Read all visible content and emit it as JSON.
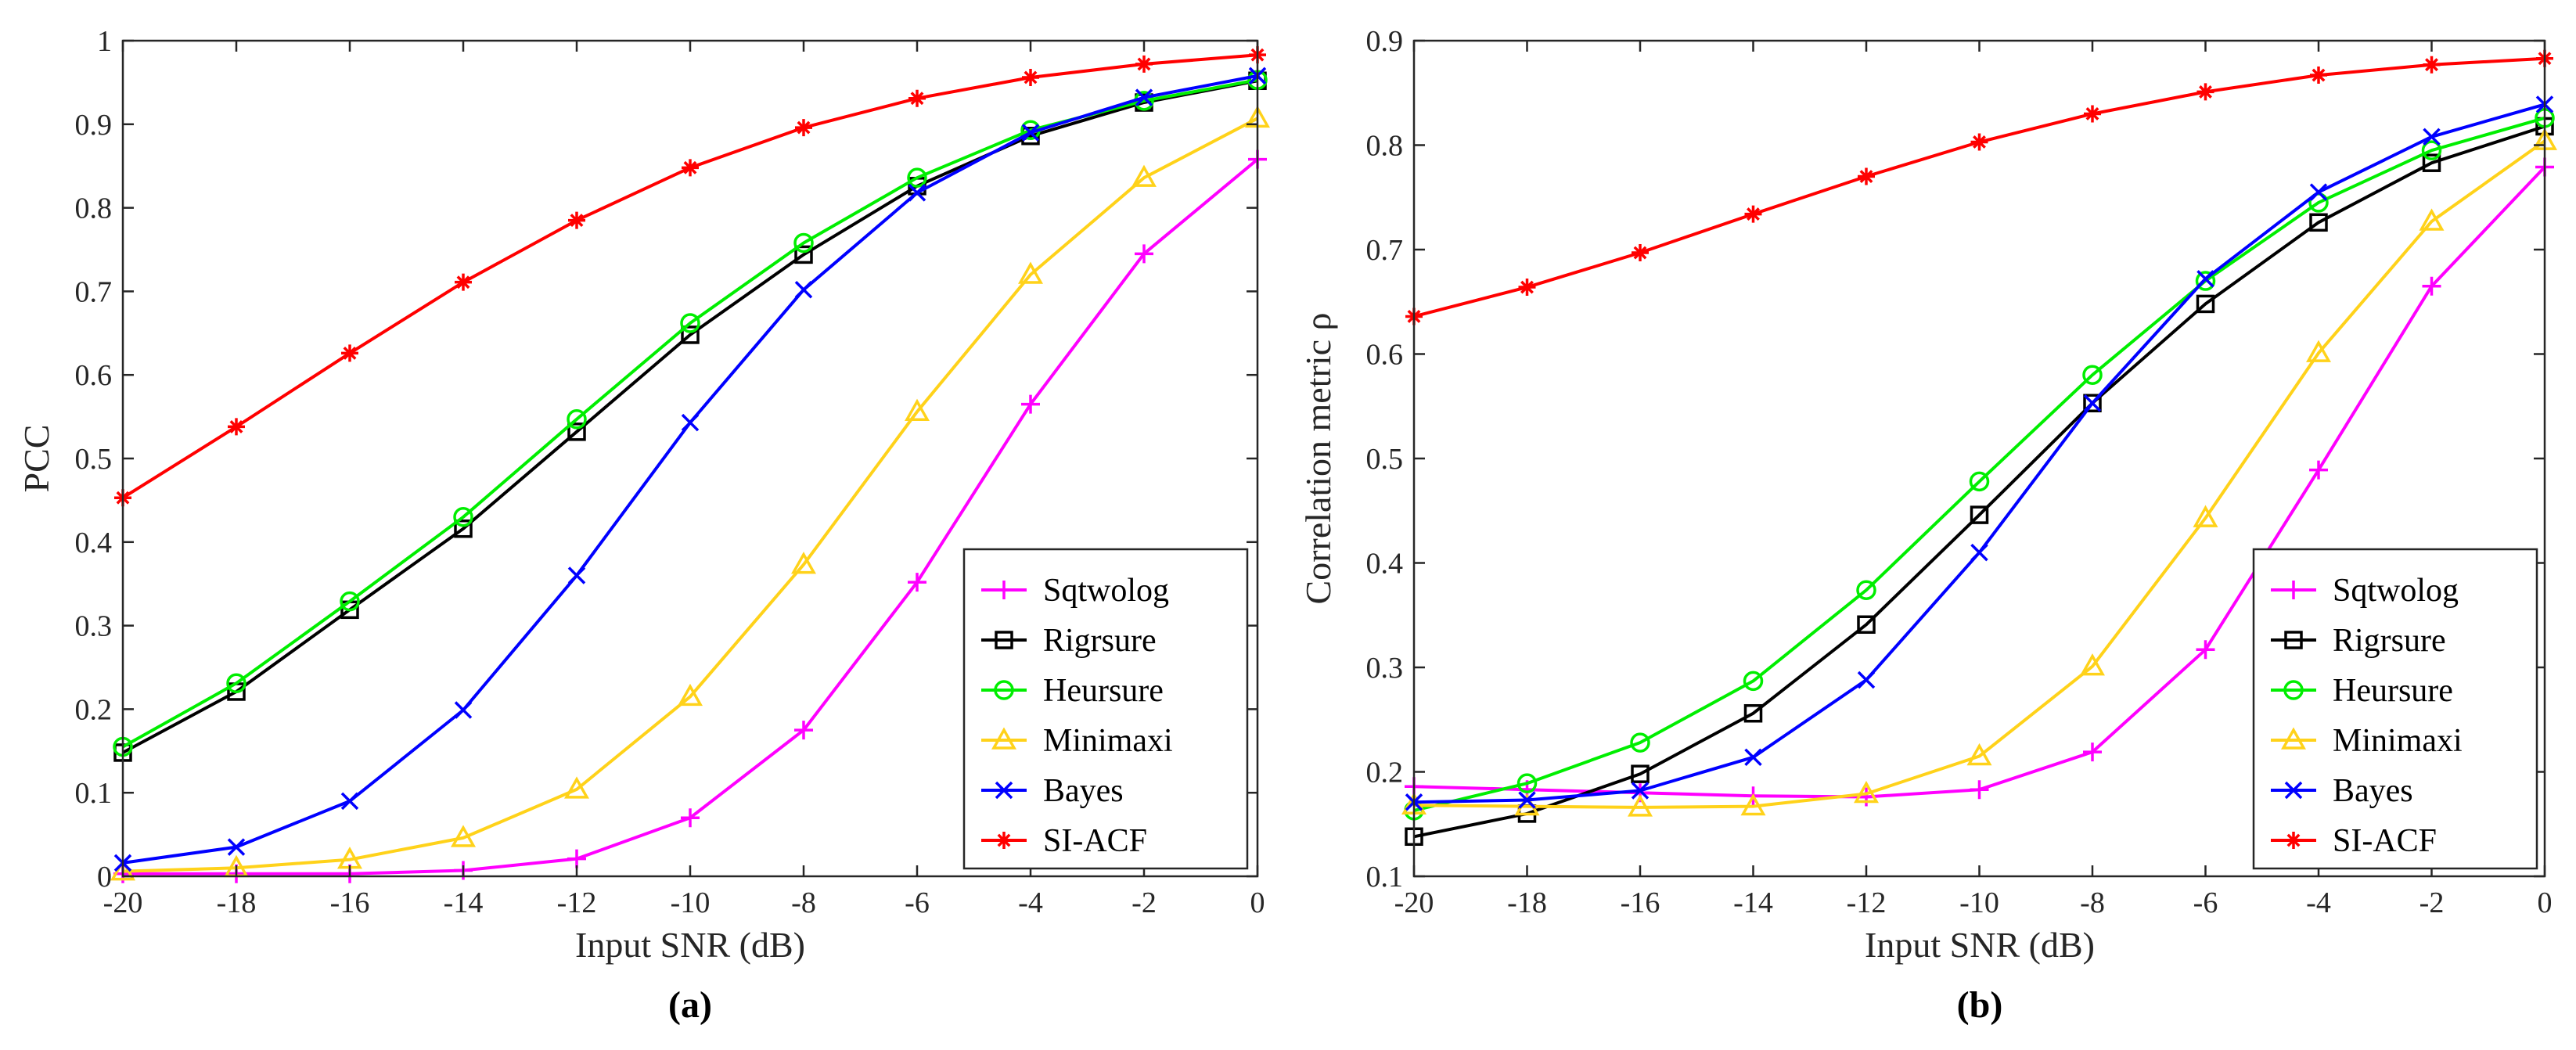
{
  "chart_data": [
    {
      "type": "line",
      "caption": "(a)",
      "xlabel": "Input SNR (dB)",
      "ylabel": "PCC",
      "xlim": [
        -20,
        0
      ],
      "ylim": [
        0,
        1
      ],
      "xticks": [
        -20,
        -18,
        -16,
        -14,
        -12,
        -10,
        -8,
        -6,
        -4,
        -2,
        0
      ],
      "xtick_labels": [
        "-20",
        "-18",
        "-16",
        "-14",
        "-12",
        "-10",
        "-8",
        "-6",
        "-4",
        "-2",
        "0"
      ],
      "yticks": [
        0,
        0.1,
        0.2,
        0.3,
        0.4,
        0.5,
        0.6,
        0.7,
        0.8,
        0.9,
        1
      ],
      "ytick_labels": [
        "0",
        "0.1",
        "0.2",
        "0.3",
        "0.4",
        "0.5",
        "0.6",
        "0.7",
        "0.8",
        "0.9",
        "1"
      ],
      "grid": false,
      "legend_position": "bottom-right",
      "x": [
        -20,
        -18,
        -16,
        -14,
        -12,
        -10,
        -8,
        -6,
        -4,
        -2,
        0
      ],
      "series": [
        {
          "name": "Sqtwolog",
          "color": "#ff00ff",
          "marker": "plus",
          "values": [
            0.003,
            0.003,
            0.003,
            0.007,
            0.021,
            0.07,
            0.175,
            0.352,
            0.565,
            0.745,
            0.858
          ]
        },
        {
          "name": "Rigrsure",
          "color": "#000000",
          "marker": "square",
          "values": [
            0.148,
            0.221,
            0.319,
            0.416,
            0.532,
            0.648,
            0.744,
            0.826,
            0.886,
            0.926,
            0.952
          ]
        },
        {
          "name": "Heursure",
          "color": "#00ee00",
          "marker": "circle",
          "values": [
            0.155,
            0.231,
            0.329,
            0.43,
            0.547,
            0.662,
            0.758,
            0.836,
            0.893,
            0.928,
            0.953
          ]
        },
        {
          "name": "Minimaxi",
          "color": "#ffd21a",
          "marker": "triangle",
          "values": [
            0.006,
            0.01,
            0.02,
            0.046,
            0.104,
            0.215,
            0.373,
            0.556,
            0.72,
            0.836,
            0.907
          ]
        },
        {
          "name": "Bayes",
          "color": "#0000ff",
          "marker": "x",
          "values": [
            0.016,
            0.035,
            0.09,
            0.199,
            0.36,
            0.543,
            0.702,
            0.818,
            0.89,
            0.932,
            0.958
          ]
        },
        {
          "name": "SI-ACF",
          "color": "#ff0000",
          "marker": "asterisk",
          "values": [
            0.453,
            0.538,
            0.626,
            0.711,
            0.785,
            0.848,
            0.896,
            0.931,
            0.956,
            0.972,
            0.983
          ]
        }
      ]
    },
    {
      "type": "line",
      "caption": "(b)",
      "xlabel": "Input SNR (dB)",
      "ylabel": "Correlation metric ρ",
      "xlim": [
        -20,
        0
      ],
      "ylim": [
        0.1,
        0.9
      ],
      "xticks": [
        -20,
        -18,
        -16,
        -14,
        -12,
        -10,
        -8,
        -6,
        -4,
        -2,
        0
      ],
      "xtick_labels": [
        "-20",
        "-18",
        "-16",
        "-14",
        "-12",
        "-10",
        "-8",
        "-6",
        "-4",
        "-2",
        "0"
      ],
      "yticks": [
        0.1,
        0.2,
        0.3,
        0.4,
        0.5,
        0.6,
        0.7,
        0.8,
        0.9
      ],
      "ytick_labels": [
        "0.1",
        "0.2",
        "0.3",
        "0.4",
        "0.5",
        "0.6",
        "0.7",
        "0.8",
        "0.9"
      ],
      "grid": false,
      "legend_position": "bottom-right",
      "x": [
        -20,
        -18,
        -16,
        -14,
        -12,
        -10,
        -8,
        -6,
        -4,
        -2,
        0
      ],
      "series": [
        {
          "name": "Sqtwolog",
          "color": "#ff00ff",
          "marker": "plus",
          "values": [
            0.186,
            0.183,
            0.18,
            0.177,
            0.176,
            0.183,
            0.219,
            0.317,
            0.489,
            0.665,
            0.779
          ]
        },
        {
          "name": "Rigrsure",
          "color": "#000000",
          "marker": "square",
          "values": [
            0.138,
            0.16,
            0.198,
            0.256,
            0.341,
            0.446,
            0.553,
            0.648,
            0.726,
            0.783,
            0.818
          ]
        },
        {
          "name": "Heursure",
          "color": "#00ee00",
          "marker": "circle",
          "values": [
            0.163,
            0.189,
            0.228,
            0.287,
            0.374,
            0.478,
            0.58,
            0.67,
            0.745,
            0.795,
            0.826
          ]
        },
        {
          "name": "Minimaxi",
          "color": "#ffd21a",
          "marker": "triangle",
          "values": [
            0.168,
            0.167,
            0.166,
            0.167,
            0.179,
            0.215,
            0.301,
            0.443,
            0.601,
            0.727,
            0.804
          ]
        },
        {
          "name": "Bayes",
          "color": "#0000ff",
          "marker": "x",
          "values": [
            0.171,
            0.173,
            0.182,
            0.214,
            0.288,
            0.41,
            0.553,
            0.672,
            0.755,
            0.808,
            0.839
          ]
        },
        {
          "name": "SI-ACF",
          "color": "#ff0000",
          "marker": "asterisk",
          "values": [
            0.636,
            0.664,
            0.697,
            0.734,
            0.77,
            0.803,
            0.83,
            0.851,
            0.867,
            0.877,
            0.883
          ]
        }
      ]
    }
  ]
}
